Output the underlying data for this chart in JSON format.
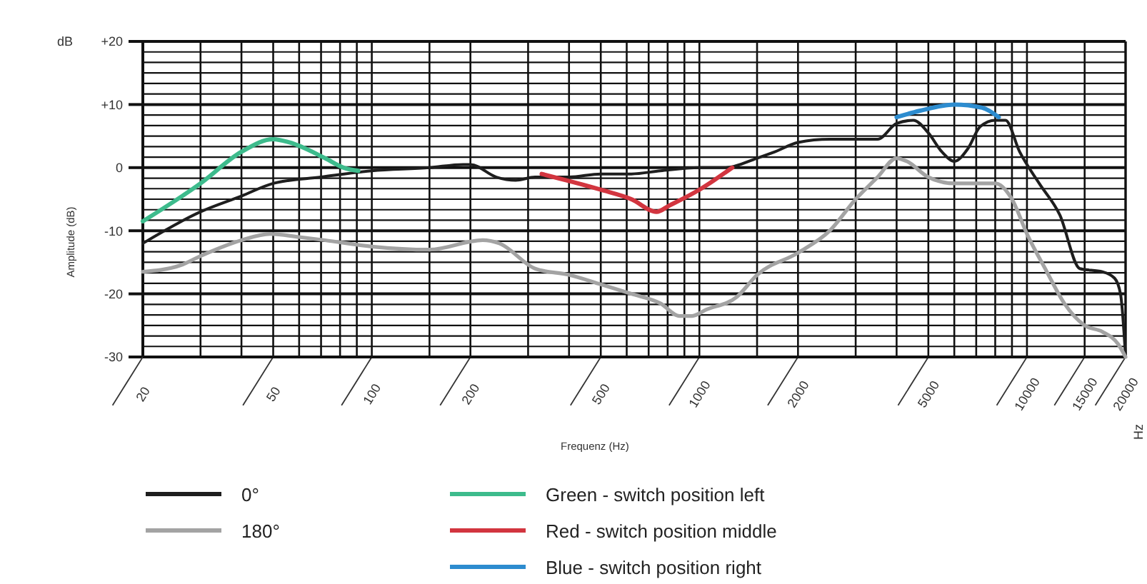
{
  "chart_data": {
    "type": "line",
    "xlabel": "Frequenz (Hz)",
    "ylabel": "Amplitude (dB)",
    "annotations": [
      "dB",
      "Hz"
    ],
    "log": "x",
    "xlim": [
      20,
      20000
    ],
    "ylim": [
      -30,
      20
    ],
    "xticks": [
      20,
      {
        "value": 30,
        "label": null
      },
      {
        "value": 40,
        "label": null
      },
      50,
      {
        "value": 60,
        "label": null
      },
      {
        "value": 70,
        "label": null
      },
      {
        "value": 80,
        "label": null
      },
      {
        "value": 90,
        "label": null
      },
      100,
      {
        "value": 150,
        "label": null
      },
      200,
      {
        "value": 300,
        "label": null
      },
      {
        "value": 400,
        "label": null
      },
      500,
      {
        "value": 600,
        "label": null
      },
      {
        "value": 700,
        "label": null
      },
      {
        "value": 800,
        "label": null
      },
      {
        "value": 900,
        "label": null
      },
      1000,
      {
        "value": 1500,
        "label": null
      },
      2000,
      {
        "value": 3000,
        "label": null
      },
      {
        "value": 4000,
        "label": null
      },
      5000,
      {
        "value": 6000,
        "label": null
      },
      {
        "value": 7000,
        "label": null
      },
      {
        "value": 8000,
        "label": null
      },
      {
        "value": 9000,
        "label": null
      },
      10000,
      15000,
      20000
    ],
    "yticks": [
      -30,
      {
        "value": -28.33,
        "label": null
      },
      {
        "value": -26.67,
        "label": null
      },
      {
        "value": -25,
        "label": null
      },
      {
        "value": -23.33,
        "label": null
      },
      {
        "value": -21.67,
        "label": null
      },
      -20,
      {
        "value": -18.33,
        "label": null
      },
      {
        "value": -16.67,
        "label": null
      },
      {
        "value": -15,
        "label": null
      },
      {
        "value": -13.33,
        "label": null
      },
      {
        "value": -11.67,
        "label": null
      },
      -10,
      {
        "value": -8.33,
        "label": null
      },
      {
        "value": -6.67,
        "label": null
      },
      {
        "value": -5,
        "label": null
      },
      {
        "value": -3.33,
        "label": null
      },
      {
        "value": -1.67,
        "label": null
      },
      0,
      {
        "value": 1.67,
        "label": null
      },
      {
        "value": 3.33,
        "label": null
      },
      {
        "value": 5,
        "label": null
      },
      {
        "value": 6.67,
        "label": null
      },
      {
        "value": 8.33,
        "label": null
      },
      {
        "value": 10,
        "label": "+10"
      },
      {
        "value": 11.67,
        "label": null
      },
      {
        "value": 13.33,
        "label": null
      },
      {
        "value": 15,
        "label": null
      },
      {
        "value": 16.67,
        "label": null
      },
      {
        "value": 18.33,
        "label": null
      },
      {
        "value": 20,
        "label": "+20"
      }
    ],
    "grid": true,
    "legend": "bottom",
    "series": [
      {
        "name": "0°",
        "color": "#1e1e1e",
        "x": [
          20,
          30,
          40,
          50,
          70,
          100,
          150,
          190,
          200,
          240,
          275,
          315,
          400,
          500,
          620,
          760,
          1000,
          1200,
          1500,
          1700,
          2000,
          2500,
          3000,
          3500,
          4000,
          4500,
          5000,
          5500,
          6000,
          6600,
          7200,
          8000,
          8600,
          9500,
          10900,
          12600,
          14500,
          17000,
          18500,
          19300,
          20000
        ],
        "values": [
          -12,
          -7,
          -4.5,
          -2.5,
          -1.5,
          -0.5,
          0,
          0.5,
          0.5,
          -1.5,
          -2,
          -1.5,
          -1.5,
          -1,
          -1,
          -0.5,
          0,
          0,
          1.5,
          2.5,
          4,
          4.5,
          4.5,
          4.5,
          7,
          7.5,
          5.5,
          2.5,
          1,
          3,
          6.5,
          7.5,
          7.5,
          2.5,
          -2.5,
          -7.5,
          -16,
          -16.5,
          -17.5,
          -20,
          -30
        ]
      },
      {
        "name": "180°",
        "color": "#a3a3a3",
        "x": [
          20,
          26,
          30,
          40,
          49,
          60,
          72,
          100,
          150,
          218,
          245,
          315,
          400,
          500,
          620,
          760,
          870,
          950,
          1050,
          1300,
          1500,
          2000,
          2500,
          3000,
          3500,
          4000,
          4300,
          5000,
          6000,
          7000,
          8000,
          9000,
          10000,
          11500,
          13000,
          15000,
          17000,
          19000,
          20000
        ],
        "values": [
          -16.5,
          -15.5,
          -14,
          -11.5,
          -10.5,
          -11,
          -11.5,
          -12.5,
          -13,
          -11.5,
          -12,
          -16,
          -17,
          -18.5,
          -20,
          -21.5,
          -23.5,
          -23.5,
          -22.5,
          -20.5,
          -17,
          -13.5,
          -10,
          -5,
          -1.5,
          1.5,
          1,
          -1.5,
          -2.5,
          -2.5,
          -2.5,
          -5,
          -10.5,
          -16.5,
          -21.5,
          -25,
          -26,
          -28,
          -30
        ]
      },
      {
        "name": "Green - switch position left",
        "color": "#3dbb8c",
        "x": [
          20,
          30,
          40,
          50,
          56,
          72,
          82,
          91
        ],
        "values": [
          -8.5,
          -2.5,
          2.5,
          4.5,
          4,
          1.5,
          0,
          -0.5
        ]
      },
      {
        "name": "Red - switch position middle",
        "color": "#d2353f",
        "x": [
          330,
          500,
          620,
          740,
          810,
          1000,
          1260
        ],
        "values": [
          -1,
          -3.5,
          -5,
          -7,
          -6,
          -3.5,
          0
        ]
      },
      {
        "name": "Blue - switch position right",
        "color": "#2d8ccf",
        "x": [
          4000,
          4700,
          6000,
          7300,
          8200
        ],
        "values": [
          8,
          9,
          10,
          9.5,
          8
        ]
      }
    ]
  }
}
